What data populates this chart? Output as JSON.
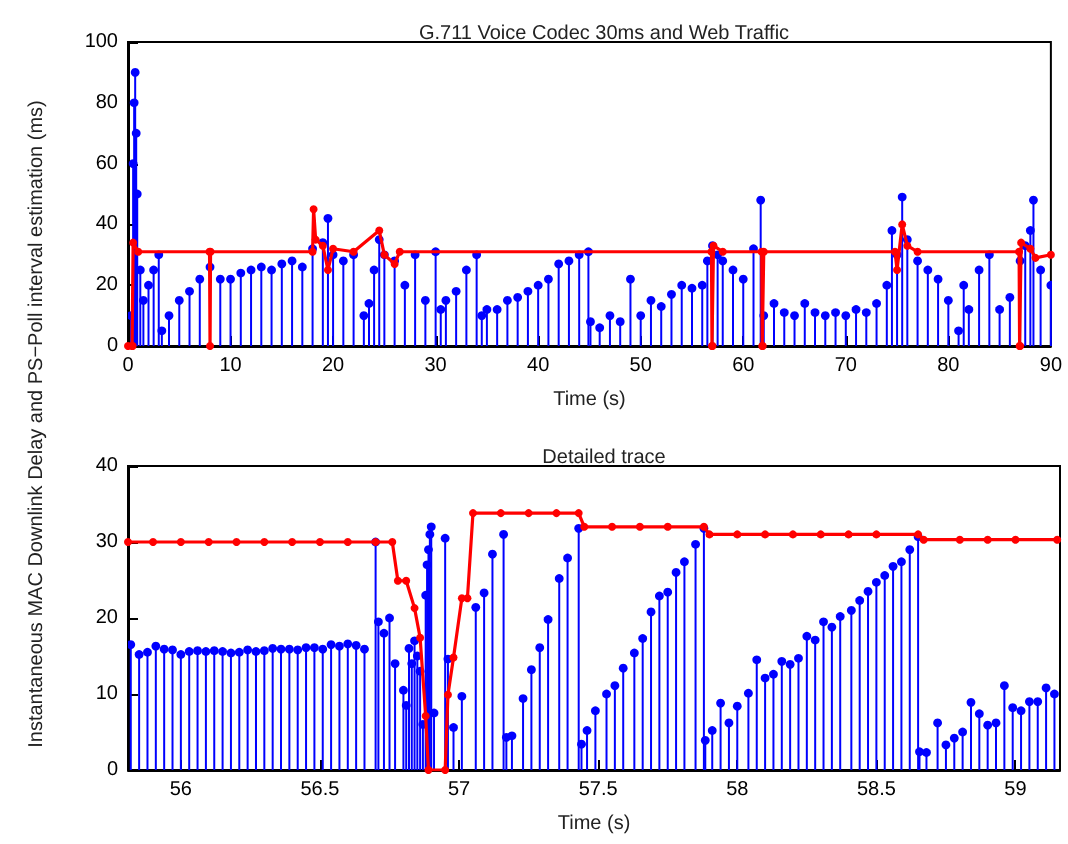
{
  "chart_data": [
    {
      "type": "lollipop",
      "title": "G.711 Voice Codec 30ms and Web Traffic",
      "xlabel": "Time (s)",
      "ylabel": "Instantaneous MAC Downlink Delay and PS−Poll interval estimation (ms)",
      "xlim": [
        0,
        90
      ],
      "xticks": [
        0,
        10,
        20,
        30,
        40,
        50,
        60,
        70,
        80,
        90
      ],
      "ylim": [
        0,
        100
      ],
      "yticks": [
        0,
        20,
        40,
        60,
        80,
        100
      ],
      "grid": false,
      "series": [
        {
          "color": "#0000ff",
          "marker": "circle",
          "x": [
            0.3,
            0.5,
            0.6,
            0.7,
            0.8,
            0.9,
            1.2,
            1.5,
            2,
            2.5,
            3,
            3.3,
            4,
            5,
            6,
            7,
            8,
            9,
            10,
            11,
            12,
            13,
            14,
            15,
            16,
            17,
            18,
            19,
            19.5,
            20,
            21,
            22,
            23,
            23.5,
            24,
            24.5,
            25,
            26,
            27,
            28,
            29,
            30,
            30.5,
            31,
            32,
            33,
            34,
            34.5,
            35,
            36,
            37,
            38,
            39,
            40,
            41,
            42,
            43,
            44,
            44.9,
            45.1,
            46,
            47,
            48,
            49,
            50,
            51,
            52,
            53,
            54,
            55,
            56,
            56.5,
            57,
            57.5,
            58,
            59,
            60,
            61,
            61.7,
            62,
            63,
            64,
            65,
            66,
            67,
            68,
            69,
            70,
            71,
            72,
            73,
            74,
            74.5,
            75,
            75.5,
            76,
            77,
            78,
            79,
            80,
            81,
            81.5,
            82,
            83,
            84,
            85,
            86,
            87,
            87.5,
            88,
            88.3,
            89,
            90
          ],
          "values": [
            10,
            60,
            80,
            90,
            70,
            50,
            25,
            15,
            20,
            25,
            30,
            5,
            10,
            15,
            18,
            22,
            26,
            22,
            22,
            24,
            25,
            26,
            25,
            27,
            28,
            26,
            32,
            34,
            42,
            30,
            28,
            30,
            10,
            14,
            25,
            35,
            30,
            28,
            20,
            30,
            15,
            31,
            12,
            15,
            18,
            25,
            30,
            10,
            12,
            12,
            15,
            16,
            18,
            20,
            22,
            27,
            28,
            30,
            31,
            8,
            6,
            10,
            8,
            22,
            10,
            15,
            13,
            17,
            20,
            19,
            20,
            28,
            33,
            30,
            28,
            25,
            22,
            32,
            48,
            10,
            14,
            11,
            10,
            14,
            11,
            10,
            11,
            10,
            12,
            11,
            14,
            20,
            38,
            30,
            49,
            35,
            28,
            25,
            22,
            15,
            5,
            20,
            12,
            25,
            30,
            12,
            16,
            28,
            33,
            38,
            48,
            25,
            20
          ]
        },
        {
          "type": "line",
          "color": "#ff0000",
          "marker": "circle",
          "x": [
            0,
            0.4,
            0.45,
            0.5,
            1,
            7.95,
            8,
            8.05,
            18,
            18.1,
            18.3,
            19,
            19.5,
            20,
            22,
            24.5,
            25,
            26,
            26.5,
            56.9,
            56.95,
            57,
            57.1,
            58,
            61.8,
            61.85,
            61.9,
            62,
            74.8,
            75,
            75.5,
            76,
            77,
            86.9,
            86.95,
            87,
            87.1,
            88,
            88.5,
            90
          ],
          "values": [
            0,
            0,
            0,
            34,
            31,
            31,
            0,
            31,
            31,
            45,
            35,
            33,
            25,
            32,
            31,
            38,
            30,
            27,
            31,
            31,
            0,
            0,
            33,
            31,
            31,
            0,
            0,
            31,
            31,
            25,
            40,
            33,
            31,
            31,
            0,
            0,
            34,
            32,
            29,
            30
          ]
        }
      ]
    },
    {
      "type": "lollipop",
      "title": "Detailed trace",
      "xlabel": "Time (s)",
      "xlim": [
        55.81,
        59.16
      ],
      "xticks": [
        56,
        56.5,
        57,
        57.5,
        58,
        58.5,
        59
      ],
      "ylim": [
        0,
        40
      ],
      "yticks": [
        0,
        10,
        20,
        30,
        40
      ],
      "grid": false,
      "series": [
        {
          "color": "#0000ff",
          "marker": "circle",
          "x": [
            55.82,
            55.85,
            55.88,
            55.91,
            55.94,
            55.97,
            56,
            56.03,
            56.06,
            56.09,
            56.12,
            56.15,
            56.18,
            56.21,
            56.24,
            56.27,
            56.3,
            56.33,
            56.36,
            56.39,
            56.42,
            56.45,
            56.48,
            56.51,
            56.54,
            56.57,
            56.6,
            56.63,
            56.66,
            56.7,
            56.71,
            56.73,
            56.75,
            56.77,
            56.8,
            56.81,
            56.82,
            56.83,
            56.84,
            56.85,
            56.86,
            56.87,
            56.88,
            56.885,
            56.89,
            56.895,
            56.9,
            56.91,
            56.95,
            56.96,
            56.98,
            57.01,
            57.06,
            57.09,
            57.12,
            57.16,
            57.17,
            57.19,
            57.23,
            57.26,
            57.29,
            57.32,
            57.36,
            57.39,
            57.43,
            57.44,
            57.46,
            57.49,
            57.53,
            57.56,
            57.59,
            57.63,
            57.66,
            57.69,
            57.72,
            57.75,
            57.78,
            57.81,
            57.85,
            57.88,
            57.885,
            57.91,
            57.94,
            57.97,
            58,
            58.04,
            58.07,
            58.1,
            58.13,
            58.16,
            58.19,
            58.22,
            58.25,
            58.28,
            58.31,
            58.34,
            58.37,
            58.41,
            58.44,
            58.47,
            58.5,
            58.53,
            58.56,
            58.59,
            58.62,
            58.65,
            58.655,
            58.68,
            58.72,
            58.75,
            58.78,
            58.81,
            58.84,
            58.87,
            58.9,
            58.93,
            58.96,
            58.99,
            59.02,
            59.05,
            59.08,
            59.11,
            59.14
          ],
          "values": [
            16.5,
            15.2,
            15.5,
            16.3,
            15.9,
            15.8,
            15.2,
            15.6,
            15.7,
            15.6,
            15.7,
            15.6,
            15.4,
            15.5,
            15.8,
            15.6,
            15.7,
            16,
            15.9,
            15.9,
            15.8,
            16.1,
            16.1,
            15.9,
            16.5,
            16.3,
            16.6,
            16.4,
            15.9,
            30,
            19.5,
            18,
            20,
            14,
            10.5,
            8.5,
            16,
            14,
            17,
            15,
            13,
            6,
            23,
            27,
            29,
            31,
            32,
            7.5,
            30.5,
            14.6,
            5.6,
            9.7,
            21.4,
            23.3,
            28.4,
            31,
            4.3,
            4.5,
            9.4,
            13.2,
            16.1,
            19.8,
            25.2,
            27.9,
            31.8,
            3.4,
            5.2,
            7.8,
            10,
            11.1,
            13.4,
            15.4,
            17.3,
            20.8,
            22.9,
            23.4,
            26,
            27.4,
            29.7,
            31.8,
            3.9,
            5.2,
            8.8,
            6.2,
            8.4,
            10.1,
            14.5,
            12.1,
            12.6,
            14.3,
            13.9,
            14.7,
            17.6,
            17.1,
            19.5,
            18.8,
            20.2,
            21,
            22.3,
            23.5,
            24.7,
            25.6,
            26.8,
            27.4,
            29,
            30.7,
            2.4,
            2.3,
            6.2,
            3.3,
            4.2,
            5,
            8.9,
            7.4,
            5.9,
            6.2,
            11.1,
            8.2,
            7.8,
            9,
            9,
            10.8,
            10
          ]
        },
        {
          "type": "line",
          "color": "#ff0000",
          "marker": "circle",
          "x": [
            55.81,
            55.9,
            56,
            56.1,
            56.2,
            56.3,
            56.4,
            56.5,
            56.6,
            56.7,
            56.76,
            56.78,
            56.81,
            56.84,
            56.86,
            56.88,
            56.89,
            56.95,
            56.96,
            56.98,
            57.01,
            57.03,
            57.05,
            57.15,
            57.25,
            57.35,
            57.43,
            57.45,
            57.55,
            57.65,
            57.75,
            57.88,
            57.9,
            58,
            58.1,
            58.2,
            58.3,
            58.4,
            58.5,
            58.65,
            58.67,
            58.8,
            58.9,
            59,
            59.15
          ],
          "values": [
            30,
            30,
            30,
            30,
            30,
            30,
            30,
            30,
            30,
            30,
            30,
            24.9,
            24.9,
            21.3,
            17.4,
            7.1,
            0,
            0,
            9.9,
            14.8,
            22.6,
            22.6,
            33.8,
            33.8,
            33.8,
            33.8,
            33.8,
            32,
            32,
            32,
            32,
            32,
            31,
            31,
            31,
            31,
            31,
            31,
            31,
            31,
            30.3,
            30.3,
            30.3,
            30.3,
            30.3
          ]
        }
      ]
    }
  ]
}
